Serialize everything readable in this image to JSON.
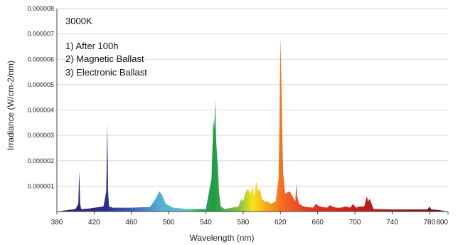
{
  "chart_data": {
    "type": "area",
    "title": "",
    "xlabel": "Wavelength (nm)",
    "ylabel": "Irradiance (W/cm-2/nm)",
    "xlim": [
      380,
      800
    ],
    "ylim": [
      0,
      8e-06
    ],
    "xticks": [
      380,
      420,
      460,
      500,
      540,
      580,
      620,
      660,
      700,
      740,
      780,
      800
    ],
    "yticks": [
      {
        "v": 1e-06,
        "label": "0.000001"
      },
      {
        "v": 2e-06,
        "label": "0.000002"
      },
      {
        "v": 3e-06,
        "label": "0.000003"
      },
      {
        "v": 4e-06,
        "label": "0.000004"
      },
      {
        "v": 5e-06,
        "label": "0.000005"
      },
      {
        "v": 6e-06,
        "label": "0.000006"
      },
      {
        "v": 7e-06,
        "label": "0.000007"
      },
      {
        "v": 8e-06,
        "label": "0.000008"
      }
    ],
    "annotations": [
      "3000K",
      "1) After 100h",
      "2) Magnetic Ballast",
      "3) Electronic Ballast"
    ],
    "grid": true,
    "x": [
      380,
      400,
      403,
      404,
      405,
      406,
      408,
      415,
      430,
      433,
      434,
      435,
      436,
      440,
      460,
      480,
      486,
      490,
      493,
      497,
      505,
      520,
      540,
      546,
      548,
      549,
      550,
      551,
      552,
      553,
      554,
      556,
      560,
      575,
      578,
      580,
      582,
      585,
      588,
      590,
      592,
      594,
      596,
      598,
      600,
      603,
      606,
      610,
      615,
      618,
      619,
      620,
      621,
      622,
      623,
      625,
      630,
      633,
      636,
      637,
      638,
      640,
      645,
      655,
      658,
      662,
      670,
      673,
      676,
      680,
      685,
      690,
      695,
      698,
      701,
      705,
      710,
      712,
      713,
      714,
      716,
      720,
      740,
      760,
      778,
      780,
      782,
      790,
      800
    ],
    "values": [
      0,
      1e-07,
      3e-07,
      1.6e-06,
      3e-07,
      1e-07,
      1e-07,
      1.2e-07,
      2e-07,
      8e-07,
      3.5e-06,
      8e-07,
      2e-07,
      1.5e-07,
      1.5e-07,
      1.8e-07,
      5e-07,
      8e-07,
      6.5e-07,
      3e-07,
      1.5e-07,
      1e-07,
      1e-07,
      1.3e-06,
      3.6e-06,
      3.3e-06,
      4.4e-06,
      2.8e-06,
      2.2e-06,
      1.7e-06,
      8e-07,
      2e-07,
      1e-07,
      2e-07,
      5e-07,
      4e-07,
      7e-07,
      9e-07,
      7e-07,
      1e-06,
      6e-07,
      1.2e-06,
      8e-07,
      9e-07,
      5e-07,
      4e-07,
      4e-07,
      3e-07,
      4e-07,
      1.3e-06,
      3.5e-06,
      6.9e-06,
      5.2e-06,
      3e-06,
      1.5e-06,
      7e-07,
      8e-07,
      6e-07,
      4e-07,
      1.1e-06,
      6e-07,
      3e-07,
      2e-07,
      1.5e-07,
      3e-07,
      2e-07,
      1.5e-07,
      2.5e-07,
      2e-07,
      1.5e-07,
      1.5e-07,
      2e-07,
      1.5e-07,
      3e-07,
      1.5e-07,
      2e-07,
      2e-07,
      5e-07,
      6e-07,
      4e-07,
      5e-07,
      1e-07,
      8e-08,
      8e-08,
      8e-08,
      2e-07,
      8e-08,
      6e-08,
      0
    ]
  }
}
